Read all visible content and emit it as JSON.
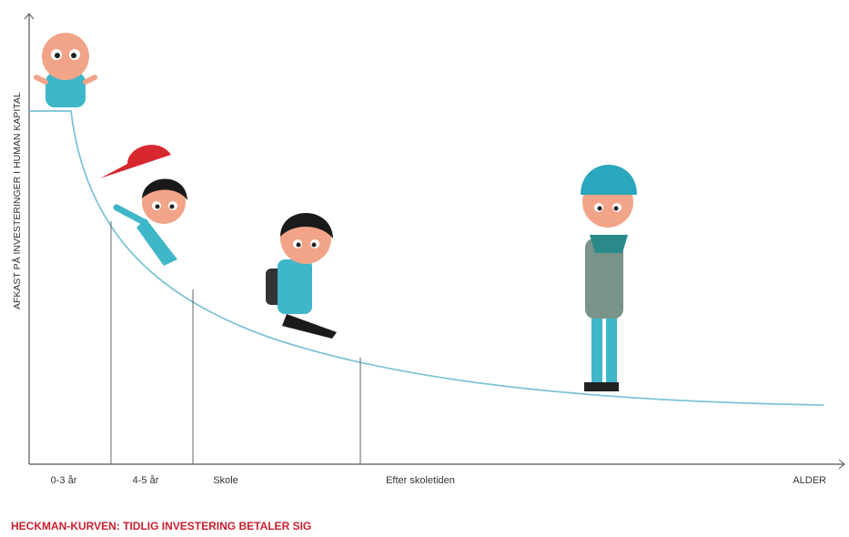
{
  "axis": {
    "y_label": "AFKAST PÅ INVESTERINGER I HUMAN KAPITAL",
    "x_labels": [
      "0-3 år",
      "4-5 år",
      "Skole",
      "Efter skoletiden"
    ],
    "x_end_label": "ALDER"
  },
  "caption": "HECKMAN-KURVEN: TIDLIG INVESTERING BETALER SIG"
}
